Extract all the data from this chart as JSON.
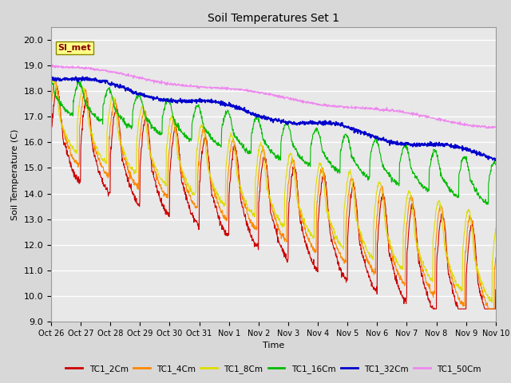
{
  "title": "Soil Temperatures Set 1",
  "xlabel": "Time",
  "ylabel": "Soil Temperature (C)",
  "ylim": [
    9.0,
    20.5
  ],
  "yticks": [
    9.0,
    10.0,
    11.0,
    12.0,
    13.0,
    14.0,
    15.0,
    16.0,
    17.0,
    18.0,
    19.0,
    20.0
  ],
  "xtick_labels": [
    "Oct 26",
    "Oct 27",
    "Oct 28",
    "Oct 29",
    "Oct 30",
    "Oct 31",
    "Nov 1",
    "Nov 2",
    "Nov 3",
    "Nov 4",
    "Nov 5",
    "Nov 6",
    "Nov 7",
    "Nov 8",
    "Nov 9",
    "Nov 10"
  ],
  "background_color": "#d8d8d8",
  "plot_bg_color": "#e8e8e8",
  "series_colors": {
    "TC1_2Cm": "#cc0000",
    "TC1_4Cm": "#ff8800",
    "TC1_8Cm": "#dddd00",
    "TC1_16Cm": "#00bb00",
    "TC1_32Cm": "#0000cc",
    "TC1_50Cm": "#ee88ee"
  },
  "legend_label": "SI_met",
  "n_days": 15,
  "samples_per_day": 96
}
